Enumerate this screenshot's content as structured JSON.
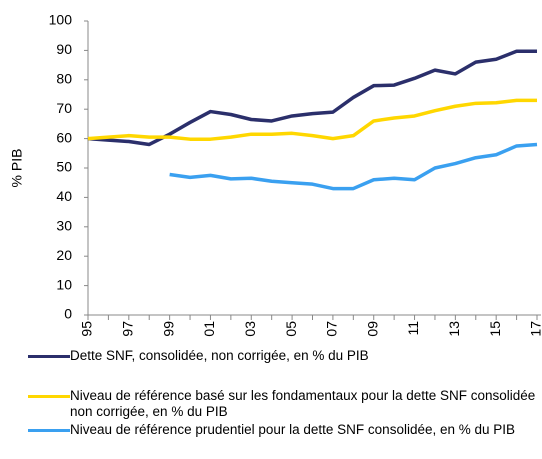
{
  "chart_data": {
    "type": "line",
    "ylabel": "% PIB",
    "categories": [
      "95",
      null,
      "97",
      null,
      "99",
      null,
      "01",
      null,
      "03",
      null,
      "05",
      null,
      "07",
      null,
      "09",
      null,
      "11",
      null,
      "13",
      null,
      "15",
      null,
      "17"
    ],
    "series": [
      {
        "name": "Dette SNF, consolidée, non corrigée, en % du PIB",
        "color": "#2b2f6b",
        "values": [
          60,
          59.5,
          59,
          58,
          61.5,
          65.5,
          69.2,
          68.2,
          66.5,
          66,
          67.7,
          68.5,
          69,
          74,
          78,
          78.2,
          80.5,
          83.3,
          82,
          86,
          87,
          89.7,
          89.7
        ]
      },
      {
        "name": "Niveau de référence basé sur les fondamentaux pour la dette SNF consolidée non corrigée, en % du PIB",
        "color": "#ffd700",
        "values": [
          60,
          60.5,
          61,
          60.5,
          60.5,
          59.8,
          59.8,
          60.5,
          61.5,
          61.5,
          61.8,
          61,
          60,
          61,
          66,
          67,
          67.7,
          69.5,
          71,
          72,
          72.2,
          73,
          73
        ]
      },
      {
        "name": "Niveau de référence prudentiel pour la dette SNF consolidée, en % du PIB",
        "color": "#3aa0f0",
        "values": [
          null,
          null,
          null,
          null,
          47.8,
          46.8,
          47.5,
          46.3,
          46.5,
          45.5,
          45,
          44.5,
          43,
          43,
          46,
          46.5,
          46,
          50,
          51.5,
          53.5,
          54.5,
          57.5,
          58
        ]
      }
    ],
    "ylim": [
      0,
      100
    ],
    "yticks": [
      0,
      10,
      20,
      30,
      40,
      50,
      60,
      70,
      80,
      90,
      100
    ],
    "grid": false
  }
}
